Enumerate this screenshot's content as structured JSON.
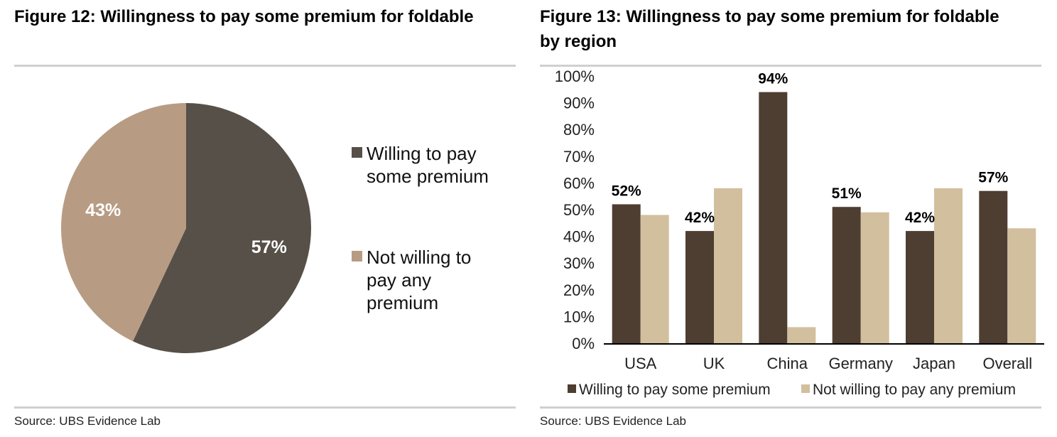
{
  "chart_data": [
    {
      "type": "pie",
      "title": "Figure 12: Willingness to pay some premium for foldable",
      "categories": [
        "Willing to pay some premium",
        "Not willing to pay any premium"
      ],
      "legend_lines": [
        [
          "Willing to pay",
          "some premium"
        ],
        [
          "Not willing to",
          "pay any",
          "premium"
        ]
      ],
      "values": [
        57,
        43
      ],
      "labels": [
        "57%",
        "43%"
      ],
      "colors": [
        "#575048",
        "#b79c83"
      ],
      "legend_position": "right",
      "source": "Source: UBS Evidence Lab"
    },
    {
      "type": "bar",
      "title_lines": [
        "Figure 13: Willingness to pay some premium for foldable",
        "by region"
      ],
      "categories": [
        "USA",
        "UK",
        "China",
        "Germany",
        "Japan",
        "Overall"
      ],
      "series": [
        {
          "name": "Willing to pay some premium",
          "values": [
            52,
            42,
            94,
            51,
            42,
            57
          ],
          "color": "#4e3d31"
        },
        {
          "name": "Not willing to pay any premium",
          "values": [
            48,
            58,
            6,
            49,
            58,
            43
          ],
          "color": "#d2bf9e"
        }
      ],
      "data_labels": [
        "52%",
        "42%",
        "94%",
        "51%",
        "42%",
        "57%"
      ],
      "y_ticks": [
        "0%",
        "10%",
        "20%",
        "30%",
        "40%",
        "50%",
        "60%",
        "70%",
        "80%",
        "90%",
        "100%"
      ],
      "ylim": [
        0,
        100
      ],
      "legend_position": "bottom",
      "grid": false,
      "source": "Source: UBS Evidence Lab"
    }
  ]
}
